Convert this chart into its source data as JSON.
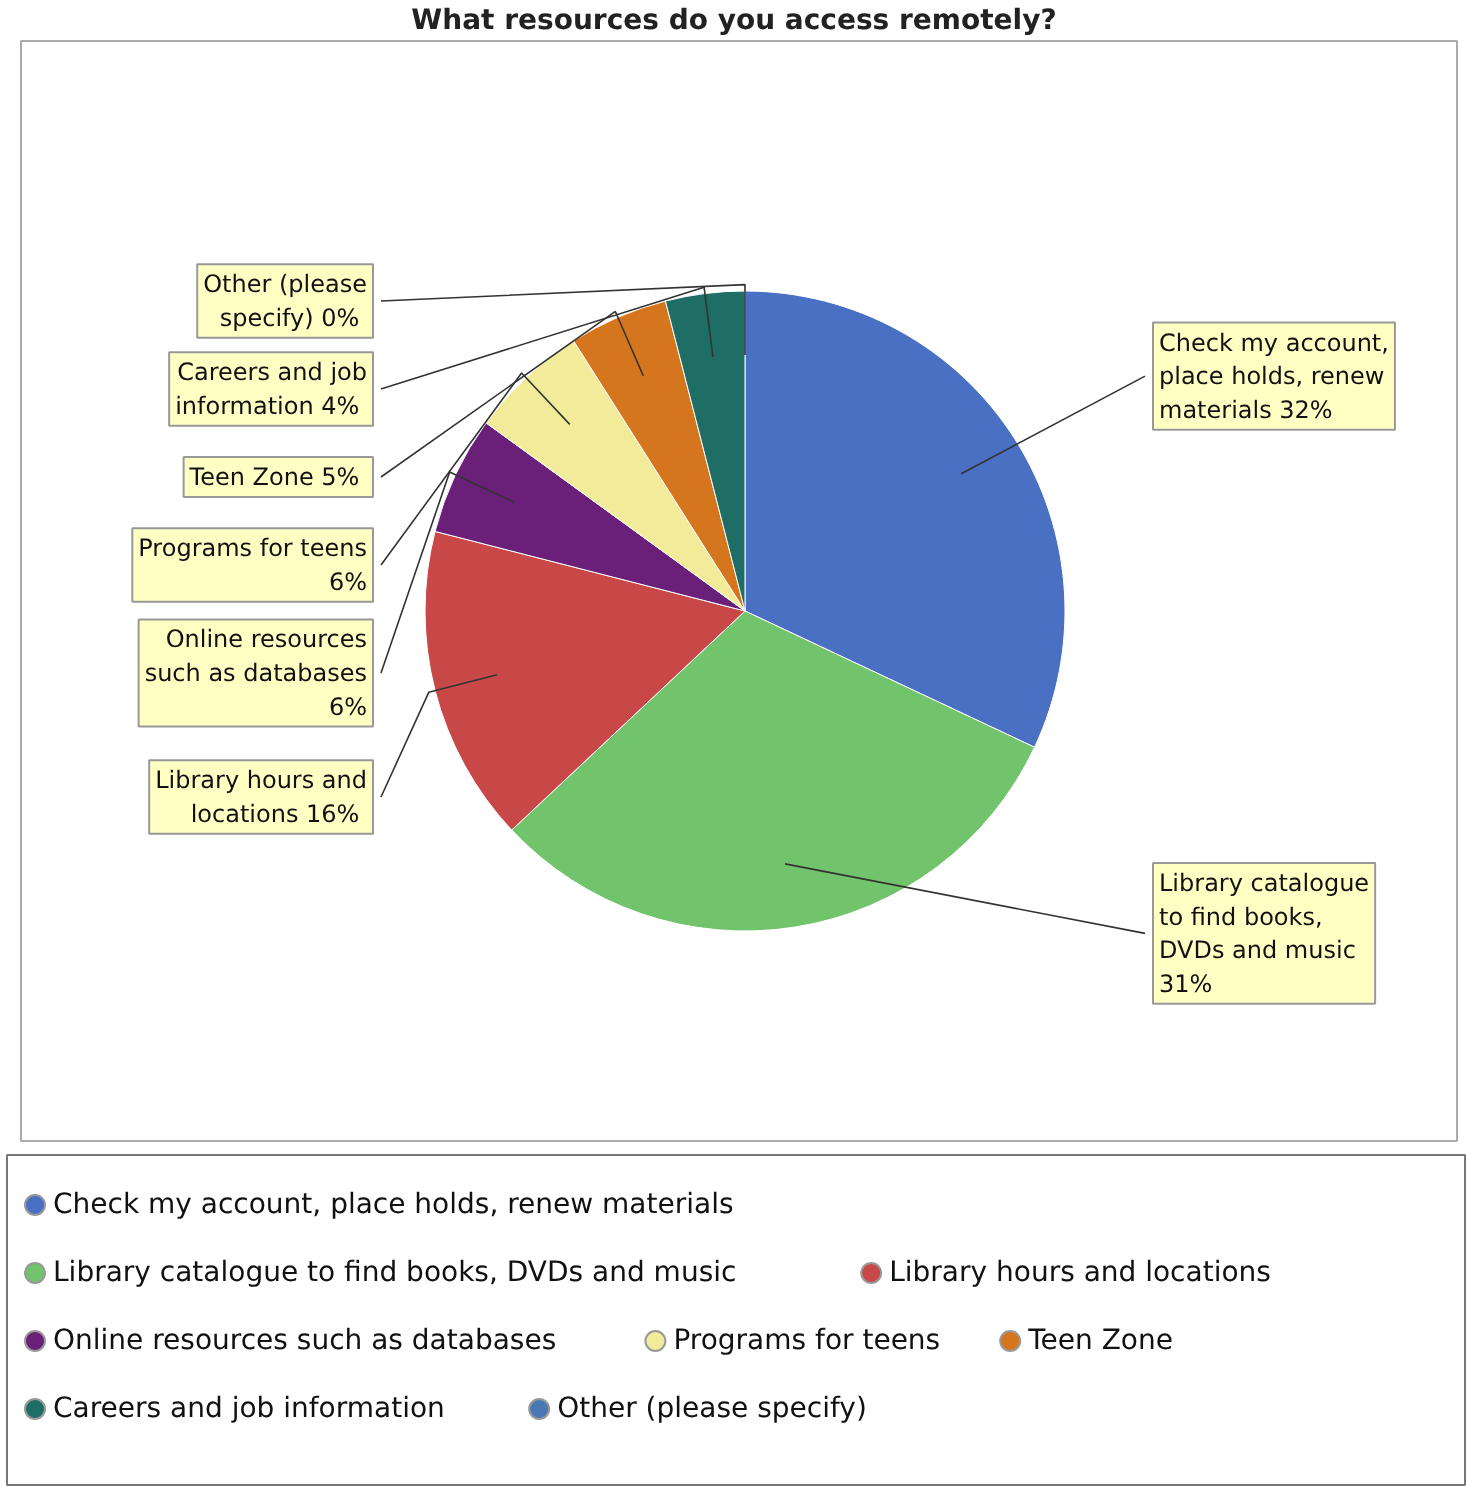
{
  "chart_data": {
    "type": "pie",
    "title": "What resources do you access remotely?",
    "categories": [
      "Check my account, place holds, renew materials",
      "Library catalogue to find books, DVDs and music",
      "Library hours and locations",
      "Online resources such as databases",
      "Programs for teens",
      "Teen Zone",
      "Careers and job information",
      "Other (please specify)"
    ],
    "values": [
      32,
      31,
      16,
      6,
      6,
      5,
      4,
      0
    ],
    "value_labels": [
      "32%",
      "31%",
      "16%",
      "6%",
      "6%",
      "5%",
      "4%",
      "0%"
    ],
    "colors": [
      "#4a70c4",
      "#72c46c",
      "#c84848",
      "#6a1f78",
      "#f2ec9a",
      "#d5761e",
      "#1f6e66",
      "#4a78b4"
    ],
    "legend": "bottom"
  }
}
